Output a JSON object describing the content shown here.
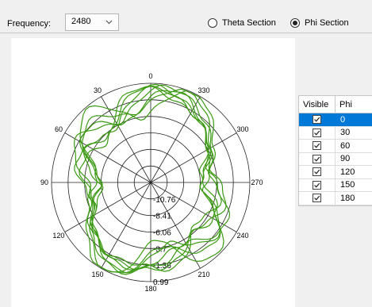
{
  "toolbar": {
    "frequency_label": "Frequency:",
    "frequency_value": "2480",
    "theta_label": "Theta Section",
    "phi_label": "Phi Section",
    "selected_section": "phi"
  },
  "polar": {
    "angle_labels": [
      "0",
      "30",
      "60",
      "90",
      "120",
      "150",
      "180",
      "210",
      "240",
      "270",
      "300",
      "330"
    ],
    "ring_labels": [
      "-10.76",
      "-8.41",
      "-6.06",
      "-3.7",
      "-1.36",
      "0.99"
    ],
    "trace_color": "#3c9a14"
  },
  "table": {
    "col_visible": "Visible",
    "col_phi": "Phi",
    "rows": [
      {
        "phi": "0",
        "checked": true,
        "selected": true
      },
      {
        "phi": "30",
        "checked": true,
        "selected": false
      },
      {
        "phi": "60",
        "checked": true,
        "selected": false
      },
      {
        "phi": "90",
        "checked": true,
        "selected": false
      },
      {
        "phi": "120",
        "checked": true,
        "selected": false
      },
      {
        "phi": "150",
        "checked": true,
        "selected": false
      },
      {
        "phi": "180",
        "checked": true,
        "selected": false
      }
    ]
  }
}
